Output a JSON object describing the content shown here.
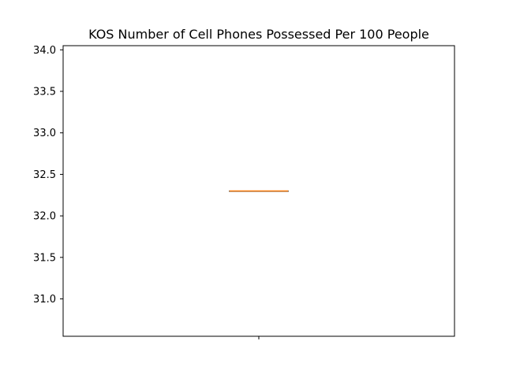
{
  "chart_data": {
    "type": "box",
    "title": "KOS Number of Cell Phones Possessed Per 100 People",
    "xlabel": "",
    "ylabel": "",
    "categories": [
      ""
    ],
    "series": [
      {
        "values": [
          32.3
        ],
        "min": 32.3,
        "q1": 32.3,
        "median": 32.3,
        "q3": 32.3,
        "max": 32.3
      }
    ],
    "ylim": [
      30.55,
      34.05
    ],
    "yticks": [
      31.0,
      31.5,
      32.0,
      32.5,
      33.0,
      33.5,
      34.0
    ],
    "ytick_labels": [
      "31.0",
      "31.5",
      "32.0",
      "32.5",
      "33.0",
      "33.5",
      "34.0"
    ],
    "grid": false,
    "colors": {
      "box": "#000000",
      "median": "#ff7f0e"
    }
  }
}
